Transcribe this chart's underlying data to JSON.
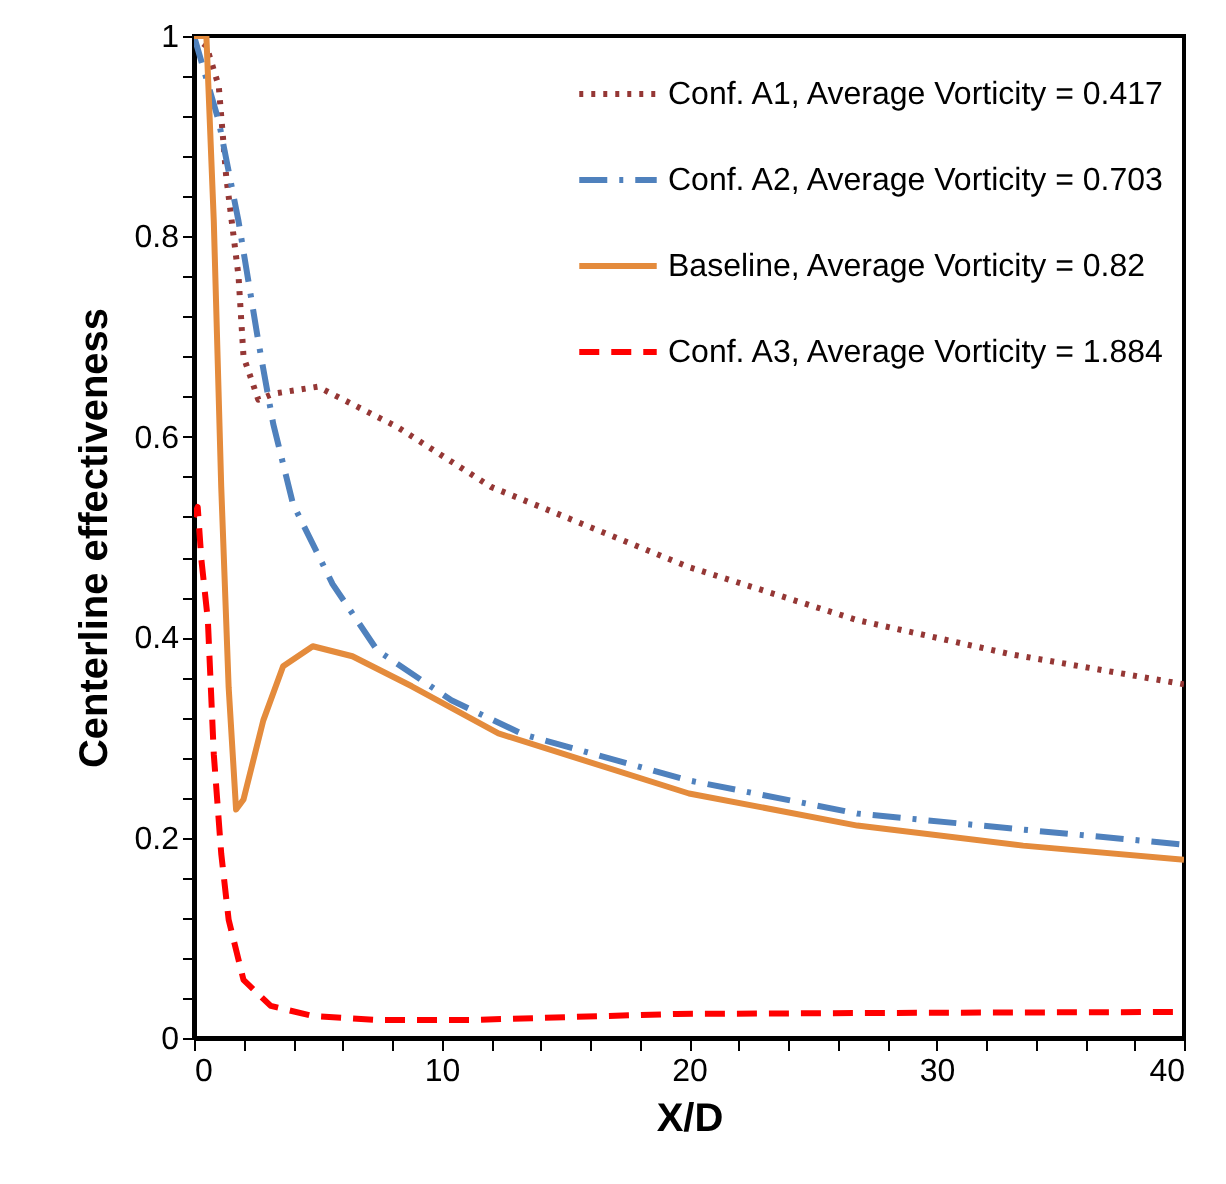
{
  "chart_data": {
    "type": "line",
    "xlabel": "X/D",
    "ylabel": "Centerline effectiveness",
    "xlim": [
      0,
      40
    ],
    "ylim": [
      0,
      1
    ],
    "xticks": [
      0,
      {
        "value": 2,
        "label": null
      },
      {
        "value": 4,
        "label": null
      },
      {
        "value": 6,
        "label": null
      },
      {
        "value": 8,
        "label": null
      },
      10,
      {
        "value": 12,
        "label": null
      },
      {
        "value": 14,
        "label": null
      },
      {
        "value": 16,
        "label": null
      },
      {
        "value": 18,
        "label": null
      },
      20,
      {
        "value": 22,
        "label": null
      },
      {
        "value": 24,
        "label": null
      },
      {
        "value": 26,
        "label": null
      },
      {
        "value": 28,
        "label": null
      },
      30,
      {
        "value": 32,
        "label": null
      },
      {
        "value": 34,
        "label": null
      },
      {
        "value": 36,
        "label": null
      },
      {
        "value": 38,
        "label": null
      },
      40
    ],
    "yticks": [
      0,
      {
        "value": 0.04,
        "label": null
      },
      {
        "value": 0.08,
        "label": null
      },
      {
        "value": 0.12,
        "label": null
      },
      {
        "value": 0.16,
        "label": null
      },
      0.2,
      {
        "value": 0.24,
        "label": null
      },
      {
        "value": 0.28,
        "label": null
      },
      {
        "value": 0.32,
        "label": null
      },
      {
        "value": 0.36,
        "label": null
      },
      0.4,
      {
        "value": 0.44,
        "label": null
      },
      {
        "value": 0.48,
        "label": null
      },
      {
        "value": 0.52,
        "label": null
      },
      {
        "value": 0.56,
        "label": null
      },
      0.6,
      {
        "value": 0.64,
        "label": null
      },
      {
        "value": 0.68,
        "label": null
      },
      {
        "value": 0.72,
        "label": null
      },
      {
        "value": 0.76,
        "label": null
      },
      0.8,
      {
        "value": 0.84,
        "label": null
      },
      {
        "value": 0.88,
        "label": null
      },
      {
        "value": 0.92,
        "label": null
      },
      {
        "value": 0.96,
        "label": null
      },
      1
    ],
    "grid": false,
    "legend": "top right",
    "marker": "none",
    "series": [
      {
        "name": "Conf. A1, Average Vorticity = 0.417",
        "color": "#953735",
        "line_style": "dotted",
        "x": [
          0,
          0.5,
          1.0,
          1.3,
          1.8,
          2.0,
          2.6,
          3.2,
          5,
          8.2,
          12,
          20,
          26.8,
          33,
          40
        ],
        "values": [
          1,
          0.99,
          0.95,
          0.86,
          0.76,
          0.68,
          0.637,
          0.643,
          0.65,
          0.61,
          0.55,
          0.47,
          0.417,
          0.383,
          0.353
        ]
      },
      {
        "name": "Conf. A2, Average Vorticity = 0.703",
        "color": "#4f81bd",
        "line_style": "dashdot",
        "x": [
          0,
          1.0,
          1.8,
          2.6,
          3.2,
          4,
          5.6,
          7.4,
          10.4,
          13.3,
          20,
          26.8,
          33.5,
          40
        ],
        "values": [
          1,
          0.915,
          0.815,
          0.695,
          0.613,
          0.533,
          0.453,
          0.387,
          0.337,
          0.303,
          0.257,
          0.224,
          0.208,
          0.193
        ]
      },
      {
        "name": "Baseline, Average Vorticity = 0.82",
        "color": "#e48b3c",
        "line_style": "solid",
        "x": [
          0,
          0.5,
          0.8,
          1.1,
          1.4,
          1.7,
          2.0,
          2.8,
          3.6,
          4.8,
          6.4,
          8.8,
          12.3,
          20,
          26.8,
          33.5,
          40
        ],
        "values": [
          1,
          1,
          0.815,
          0.55,
          0.35,
          0.228,
          0.238,
          0.317,
          0.371,
          0.391,
          0.381,
          0.351,
          0.304,
          0.244,
          0.212,
          0.192,
          0.178
        ]
      },
      {
        "name": "Conf. A3, Average Vorticity = 1.884",
        "color": "#ff0000",
        "line_style": "dashed",
        "x": [
          0,
          0.15,
          0.3,
          0.56,
          0.8,
          1.1,
          1.4,
          2.0,
          3.1,
          4.8,
          7.4,
          11.2,
          19.5,
          27.6,
          40
        ],
        "values": [
          0.52,
          0.53,
          0.477,
          0.417,
          0.283,
          0.184,
          0.118,
          0.058,
          0.032,
          0.022,
          0.018,
          0.018,
          0.024,
          0.025,
          0.026
        ]
      }
    ]
  }
}
